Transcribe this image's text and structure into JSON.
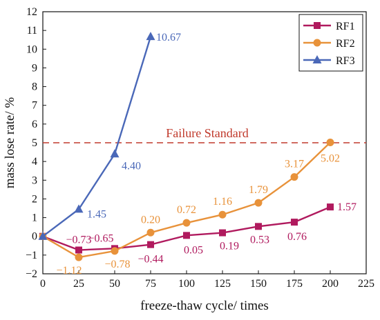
{
  "chart_data": {
    "type": "line",
    "xlabel": "freeze-thaw cycle/ times",
    "ylabel": "mass lose rate/ %",
    "xlim": [
      0,
      225
    ],
    "ylim": [
      -2,
      12
    ],
    "xticks": [
      0,
      25,
      50,
      75,
      100,
      125,
      150,
      175,
      200,
      225
    ],
    "yticks": [
      -2,
      -1,
      0,
      1,
      2,
      3,
      4,
      5,
      6,
      7,
      8,
      9,
      10,
      11,
      12
    ],
    "grid": false,
    "legend_position": "top-right",
    "series": [
      {
        "name": "RF1",
        "marker": "square",
        "color": "#b01a5e",
        "x": [
          0,
          25,
          50,
          75,
          100,
          125,
          150,
          175,
          200
        ],
        "values": [
          0,
          -0.73,
          -0.65,
          -0.44,
          0.05,
          0.19,
          0.53,
          0.76,
          1.57
        ],
        "labels": [
          "",
          "−0.73",
          "−0.65",
          "−0.44",
          "0.05",
          "0.19",
          "0.53",
          "0.76",
          "1.57"
        ]
      },
      {
        "name": "RF2",
        "marker": "circle",
        "color": "#e8923a",
        "x": [
          0,
          25,
          50,
          75,
          100,
          125,
          150,
          175,
          200
        ],
        "values": [
          0,
          -1.12,
          -0.78,
          0.2,
          0.72,
          1.16,
          1.79,
          3.17,
          5.02
        ],
        "labels": [
          "",
          "−1.12",
          "−0.78",
          "0.20",
          "0.72",
          "1.16",
          "1.79",
          "3.17",
          "5.02"
        ]
      },
      {
        "name": "RF3",
        "marker": "triangle",
        "color": "#4a68b8",
        "x": [
          0,
          25,
          50,
          75
        ],
        "values": [
          0,
          1.45,
          4.4,
          10.67
        ],
        "labels": [
          "",
          "1.45",
          "4.40",
          "10.67"
        ]
      }
    ],
    "reference_line": {
      "y": 5,
      "label": "Failure Standard",
      "color": "#c0392b",
      "style": "dashed"
    }
  }
}
